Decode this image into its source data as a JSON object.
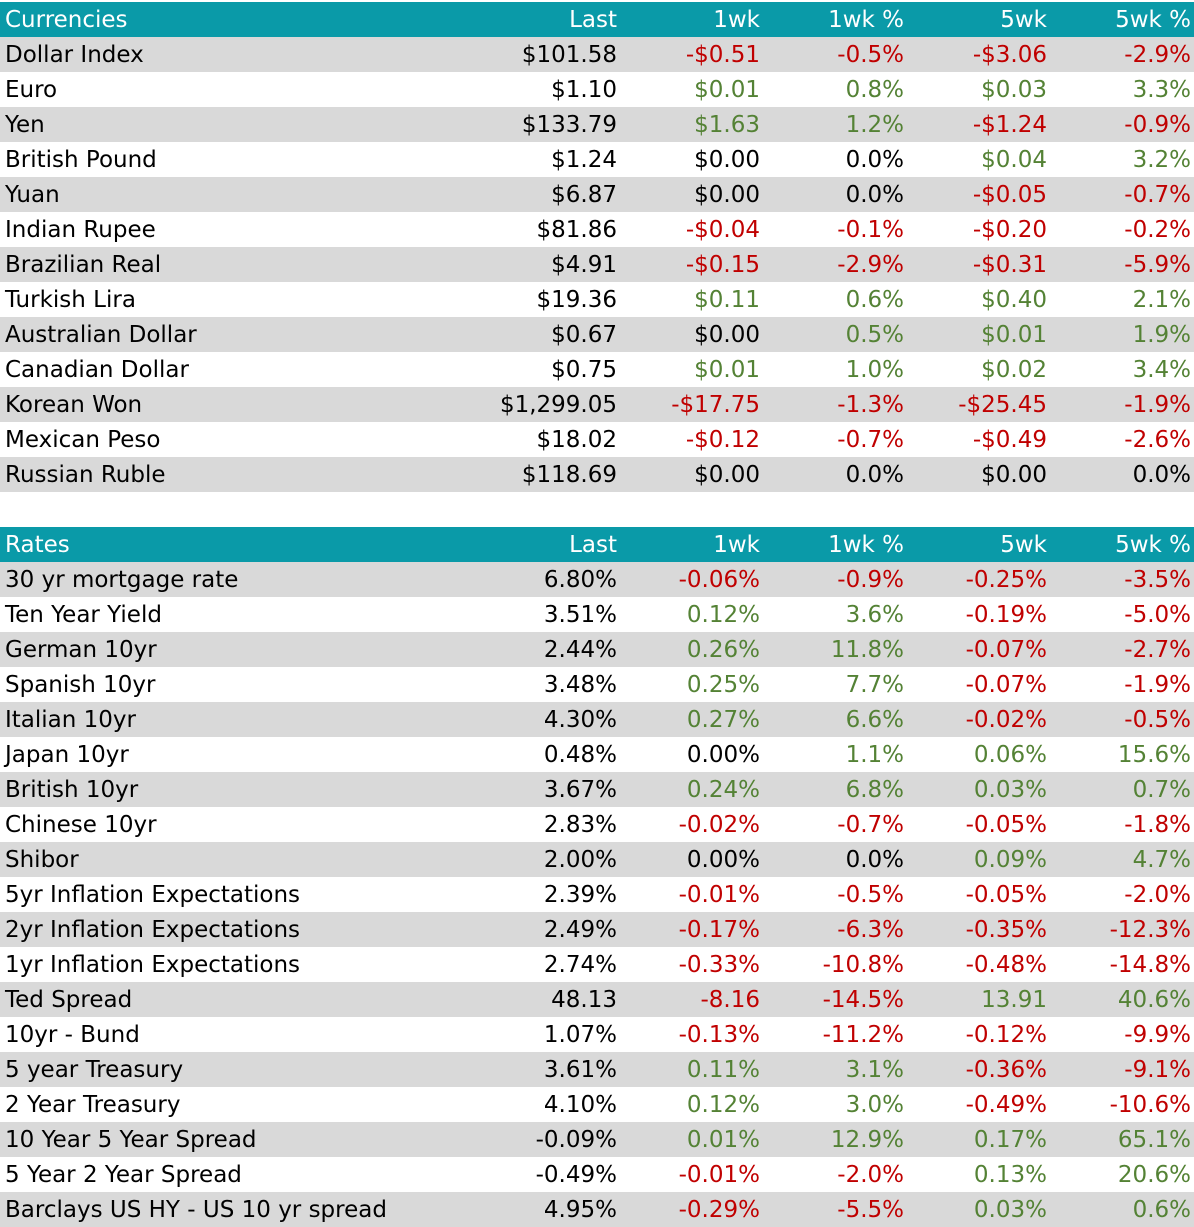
{
  "currencies": {
    "header": [
      "Currencies",
      "Last",
      "1wk",
      "1wk %",
      "5wk",
      "5wk %"
    ],
    "rows": [
      {
        "name": "Dollar Index",
        "last": "$101.58",
        "wk1": "-$0.51",
        "wk1_pct": "-0.5%",
        "wk5": "-$3.06",
        "wk5_pct": "-2.9%"
      },
      {
        "name": "Euro",
        "last": "$1.10",
        "wk1": "$0.01",
        "wk1_pct": "0.8%",
        "wk5": "$0.03",
        "wk5_pct": "3.3%"
      },
      {
        "name": "Yen",
        "last": "$133.79",
        "wk1": "$1.63",
        "wk1_pct": "1.2%",
        "wk5": "-$1.24",
        "wk5_pct": "-0.9%"
      },
      {
        "name": "British Pound",
        "last": "$1.24",
        "wk1": "$0.00",
        "wk1_pct": "0.0%",
        "wk5": "$0.04",
        "wk5_pct": "3.2%"
      },
      {
        "name": "Yuan",
        "last": "$6.87",
        "wk1": "$0.00",
        "wk1_pct": "0.0%",
        "wk5": "-$0.05",
        "wk5_pct": "-0.7%"
      },
      {
        "name": "Indian Rupee",
        "last": "$81.86",
        "wk1": "-$0.04",
        "wk1_pct": "-0.1%",
        "wk5": "-$0.20",
        "wk5_pct": "-0.2%"
      },
      {
        "name": "Brazilian Real",
        "last": "$4.91",
        "wk1": "-$0.15",
        "wk1_pct": "-2.9%",
        "wk5": "-$0.31",
        "wk5_pct": "-5.9%"
      },
      {
        "name": "Turkish Lira",
        "last": "$19.36",
        "wk1": "$0.11",
        "wk1_pct": "0.6%",
        "wk5": "$0.40",
        "wk5_pct": "2.1%"
      },
      {
        "name": "Australian Dollar",
        "last": "$0.67",
        "wk1": "$0.00",
        "wk1_pct": "0.5%",
        "wk5": "$0.01",
        "wk5_pct": "1.9%"
      },
      {
        "name": "Canadian Dollar",
        "last": "$0.75",
        "wk1": "$0.01",
        "wk1_pct": "1.0%",
        "wk5": "$0.02",
        "wk5_pct": "3.4%"
      },
      {
        "name": "Korean Won",
        "last": "$1,299.05",
        "wk1": "-$17.75",
        "wk1_pct": "-1.3%",
        "wk5": "-$25.45",
        "wk5_pct": "-1.9%"
      },
      {
        "name": "Mexican Peso",
        "last": "$18.02",
        "wk1": "-$0.12",
        "wk1_pct": "-0.7%",
        "wk5": "-$0.49",
        "wk5_pct": "-2.6%"
      },
      {
        "name": "Russian Ruble",
        "last": "$118.69",
        "wk1": "$0.00",
        "wk1_pct": "0.0%",
        "wk5": "$0.00",
        "wk5_pct": "0.0%"
      }
    ]
  },
  "rates": {
    "header": [
      "Rates",
      "Last",
      "1wk",
      "1wk %",
      "5wk",
      "5wk %"
    ],
    "rows": [
      {
        "name": "30 yr mortgage rate",
        "last": "6.80%",
        "wk1": "-0.06%",
        "wk1_pct": "-0.9%",
        "wk5": "-0.25%",
        "wk5_pct": "-3.5%"
      },
      {
        "name": "Ten Year Yield",
        "last": "3.51%",
        "wk1": "0.12%",
        "wk1_pct": "3.6%",
        "wk5": "-0.19%",
        "wk5_pct": "-5.0%"
      },
      {
        "name": "German 10yr",
        "last": "2.44%",
        "wk1": "0.26%",
        "wk1_pct": "11.8%",
        "wk5": "-0.07%",
        "wk5_pct": "-2.7%"
      },
      {
        "name": "Spanish 10yr",
        "last": "3.48%",
        "wk1": "0.25%",
        "wk1_pct": "7.7%",
        "wk5": "-0.07%",
        "wk5_pct": "-1.9%"
      },
      {
        "name": "Italian 10yr",
        "last": "4.30%",
        "wk1": "0.27%",
        "wk1_pct": "6.6%",
        "wk5": "-0.02%",
        "wk5_pct": "-0.5%"
      },
      {
        "name": "Japan 10yr",
        "last": "0.48%",
        "wk1": "0.00%",
        "wk1_pct": "1.1%",
        "wk5": "0.06%",
        "wk5_pct": "15.6%"
      },
      {
        "name": "British 10yr",
        "last": "3.67%",
        "wk1": "0.24%",
        "wk1_pct": "6.8%",
        "wk5": "0.03%",
        "wk5_pct": "0.7%"
      },
      {
        "name": "Chinese 10yr",
        "last": "2.83%",
        "wk1": "-0.02%",
        "wk1_pct": "-0.7%",
        "wk5": "-0.05%",
        "wk5_pct": "-1.8%"
      },
      {
        "name": "Shibor",
        "last": "2.00%",
        "wk1": "0.00%",
        "wk1_pct": "0.0%",
        "wk5": "0.09%",
        "wk5_pct": "4.7%"
      },
      {
        "name": "5yr Inflation Expectations",
        "last": "2.39%",
        "wk1": "-0.01%",
        "wk1_pct": "-0.5%",
        "wk5": "-0.05%",
        "wk5_pct": "-2.0%"
      },
      {
        "name": "2yr Inflation Expectations",
        "last": "2.49%",
        "wk1": "-0.17%",
        "wk1_pct": "-6.3%",
        "wk5": "-0.35%",
        "wk5_pct": "-12.3%"
      },
      {
        "name": "1yr Inflation Expectations",
        "last": "2.74%",
        "wk1": "-0.33%",
        "wk1_pct": "-10.8%",
        "wk5": "-0.48%",
        "wk5_pct": "-14.8%"
      },
      {
        "name": "Ted Spread",
        "last": "48.13",
        "wk1": "-8.16",
        "wk1_pct": "-14.5%",
        "wk5": "13.91",
        "wk5_pct": "40.6%"
      },
      {
        "name": "10yr - Bund",
        "last": "1.07%",
        "wk1": "-0.13%",
        "wk1_pct": "-11.2%",
        "wk5": "-0.12%",
        "wk5_pct": "-9.9%"
      },
      {
        "name": "5 year Treasury",
        "last": "3.61%",
        "wk1": "0.11%",
        "wk1_pct": "3.1%",
        "wk5": "-0.36%",
        "wk5_pct": "-9.1%"
      },
      {
        "name": "2 Year Treasury",
        "last": "4.10%",
        "wk1": "0.12%",
        "wk1_pct": "3.0%",
        "wk5": "-0.49%",
        "wk5_pct": "-10.6%"
      },
      {
        "name": "10 Year 5 Year Spread",
        "last": "-0.09%",
        "wk1": "0.01%",
        "wk1_pct": "12.9%",
        "wk5": "0.17%",
        "wk5_pct": "65.1%"
      },
      {
        "name": "5 Year 2 Year Spread",
        "last": "-0.49%",
        "wk1": "-0.01%",
        "wk1_pct": "-2.0%",
        "wk5": "0.13%",
        "wk5_pct": "20.6%"
      },
      {
        "name": "Barclays US HY - US 10 yr spread",
        "last": "4.95%",
        "wk1": "-0.29%",
        "wk1_pct": "-5.5%",
        "wk5": "0.03%",
        "wk5_pct": "0.6%"
      }
    ]
  },
  "colors": {
    "header_bg": "#0a9aa8",
    "band_bg": "#d9d9d9",
    "negative": "#c00000",
    "positive": "#548235",
    "neutral": "#000000"
  }
}
